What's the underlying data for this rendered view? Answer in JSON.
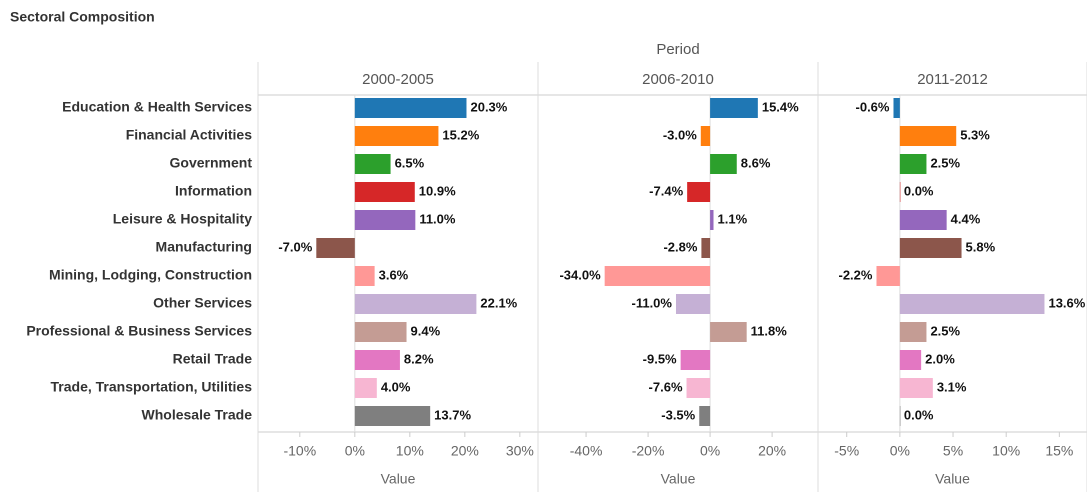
{
  "chart_data": {
    "type": "bar",
    "orientation": "horizontal",
    "title": "Sectoral Composition",
    "column_title": "Period",
    "categories": [
      "Education & Health Services",
      "Financial Activities",
      "Government",
      "Information",
      "Leisure & Hospitality",
      "Manufacturing",
      "Mining, Lodging, Construction",
      "Other Services",
      "Professional & Business Services",
      "Retail Trade",
      "Trade, Transportation, Utilities",
      "Wholesale Trade"
    ],
    "colors": [
      "#1f77b4",
      "#ff7f0e",
      "#2ca02c",
      "#d62728",
      "#9467bd",
      "#8c564b",
      "#ff9896",
      "#c5b0d5",
      "#c49c94",
      "#e377c2",
      "#f7b6d2",
      "#7f7f7f"
    ],
    "panels": [
      {
        "name": "2000-2005",
        "x_label": "Value",
        "values": [
          20.3,
          15.2,
          6.5,
          10.9,
          11.0,
          -7.0,
          3.6,
          22.1,
          9.4,
          8.2,
          4.0,
          13.7
        ],
        "value_labels": [
          "20.3%",
          "15.2%",
          "6.5%",
          "10.9%",
          "11.0%",
          "-7.0%",
          "3.6%",
          "22.1%",
          "9.4%",
          "8.2%",
          "4.0%",
          "13.7%"
        ],
        "xlim": [
          -17.6,
          33.3
        ],
        "xticks": [
          {
            "value": -10,
            "label": "-10%"
          },
          {
            "value": 0,
            "label": "0%"
          },
          {
            "value": 10,
            "label": "10%"
          },
          {
            "value": 20,
            "label": "20%"
          },
          {
            "value": 30,
            "label": "30%"
          }
        ]
      },
      {
        "name": "2006-2010",
        "x_label": "Value",
        "values": [
          15.4,
          -3.0,
          8.6,
          -7.4,
          1.1,
          -2.8,
          -34.0,
          -11.0,
          11.8,
          -9.5,
          -7.6,
          -3.5
        ],
        "value_labels": [
          "15.4%",
          "-3.0%",
          "8.6%",
          "-7.4%",
          "1.1%",
          "-2.8%",
          "-34.0%",
          "-11.0%",
          "11.8%",
          "-9.5%",
          "-7.6%",
          "-3.5%"
        ],
        "xlim": [
          -55.5,
          34.8
        ],
        "xticks": [
          {
            "value": -40,
            "label": "-40%"
          },
          {
            "value": -20,
            "label": "-20%"
          },
          {
            "value": 0,
            "label": "0%"
          },
          {
            "value": 20,
            "label": "20%"
          }
        ]
      },
      {
        "name": "2011-2012",
        "x_label": "Value",
        "values": [
          -0.6,
          5.3,
          2.5,
          0.0,
          4.4,
          5.8,
          -2.2,
          13.6,
          2.5,
          2.0,
          3.1,
          0.0
        ],
        "value_labels": [
          "-0.6%",
          "5.3%",
          "2.5%",
          "0.0%",
          "4.4%",
          "5.8%",
          "-2.2%",
          "13.6%",
          "2.5%",
          "2.0%",
          "3.1%",
          "0.0%"
        ],
        "xlim": [
          -7.7,
          17.6
        ],
        "xticks": [
          {
            "value": -5,
            "label": "-5%"
          },
          {
            "value": 0,
            "label": "0%"
          },
          {
            "value": 5,
            "label": "5%"
          },
          {
            "value": 10,
            "label": "10%"
          },
          {
            "value": 15,
            "label": "15%"
          }
        ]
      }
    ]
  }
}
